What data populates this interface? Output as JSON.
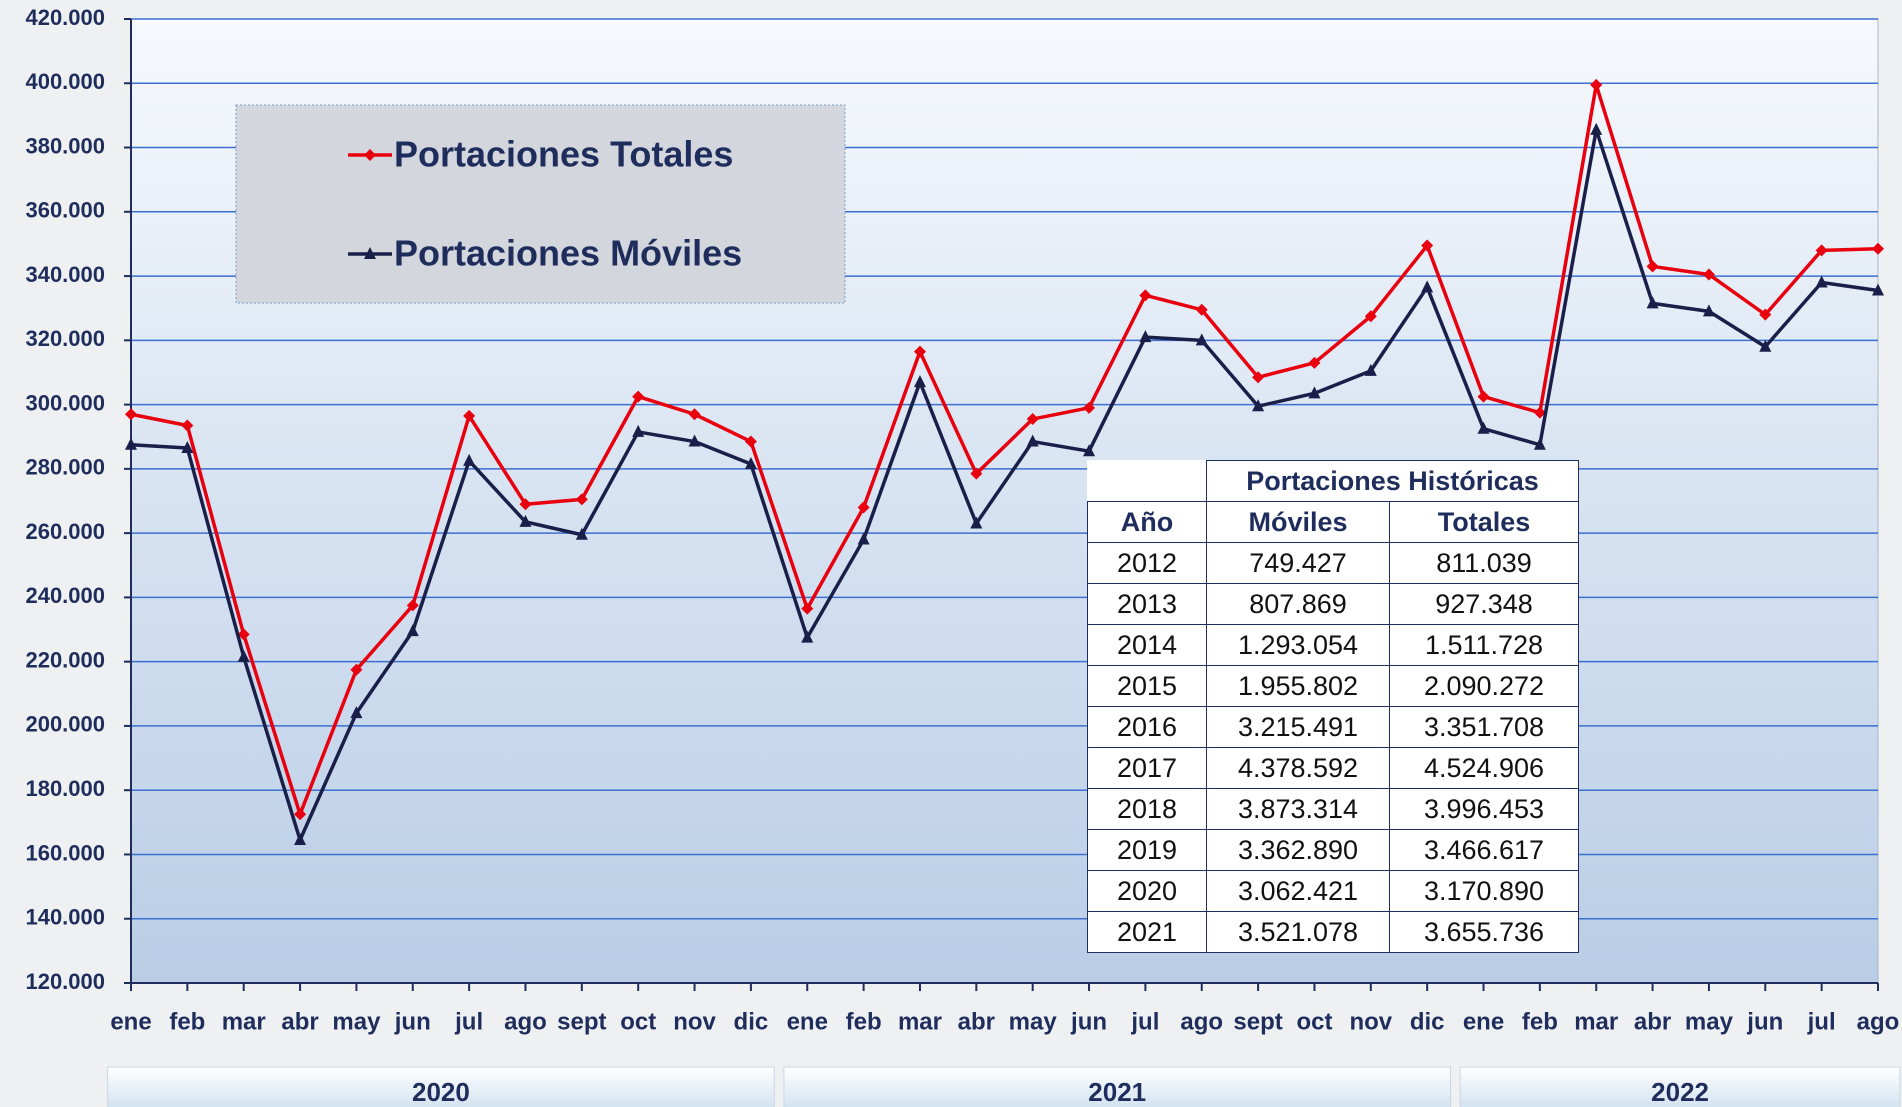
{
  "chart_data": {
    "type": "line",
    "categories": [
      "ene",
      "feb",
      "mar",
      "abr",
      "may",
      "jun",
      "jul",
      "ago",
      "sept",
      "oct",
      "nov",
      "dic",
      "ene",
      "feb",
      "mar",
      "abr",
      "may",
      "jun",
      "jul",
      "ago",
      "sept",
      "oct",
      "nov",
      "dic",
      "ene",
      "feb",
      "mar",
      "abr",
      "may",
      "jun",
      "jul",
      "ago"
    ],
    "groups": [
      "2020",
      "2021",
      "2022"
    ],
    "series": [
      {
        "name": "Portaciones Totales",
        "color": "#e8000e",
        "marker": "diamond",
        "values": [
          297000,
          293500,
          228500,
          172500,
          217500,
          237500,
          296500,
          269000,
          270500,
          302500,
          297000,
          288500,
          236500,
          268000,
          316500,
          278500,
          295500,
          299000,
          334000,
          329500,
          308500,
          313000,
          327500,
          349500,
          302500,
          297500,
          399500,
          343000,
          340500,
          328000,
          348000,
          348500
        ]
      },
      {
        "name": "Portaciones Móviles",
        "color": "#1a1f4a",
        "marker": "triangle",
        "values": [
          287500,
          286500,
          221500,
          164500,
          204000,
          229500,
          282500,
          263500,
          259500,
          291500,
          288500,
          281500,
          227500,
          258000,
          307000,
          263000,
          288500,
          285500,
          321000,
          320000,
          299500,
          303500,
          310500,
          336500,
          292500,
          287500,
          385500,
          331500,
          329000,
          318000,
          338000,
          335500
        ]
      }
    ],
    "ylim": [
      120000,
      420000
    ],
    "yticks": [
      {
        "value": 120000,
        "label": "120.000"
      },
      {
        "value": 140000,
        "label": "140.000"
      },
      {
        "value": 160000,
        "label": "160.000"
      },
      {
        "value": 180000,
        "label": "180.000"
      },
      {
        "value": 200000,
        "label": "200.000"
      },
      {
        "value": 220000,
        "label": "220.000"
      },
      {
        "value": 240000,
        "label": "240.000"
      },
      {
        "value": 260000,
        "label": "260.000"
      },
      {
        "value": 280000,
        "label": "280.000"
      },
      {
        "value": 300000,
        "label": "300.000"
      },
      {
        "value": 320000,
        "label": "320.000"
      },
      {
        "value": 340000,
        "label": "340.000"
      },
      {
        "value": 360000,
        "label": "360.000"
      },
      {
        "value": 380000,
        "label": "380.000"
      },
      {
        "value": 400000,
        "label": "400.000"
      },
      {
        "value": 420000,
        "label": "420.000"
      }
    ],
    "grid": true
  },
  "table": {
    "title": "Portaciones Históricas",
    "header": [
      "Año",
      "Móviles",
      "Totales"
    ],
    "rows": [
      [
        "2012",
        "749.427",
        "811.039"
      ],
      [
        "2013",
        "807.869",
        "927.348"
      ],
      [
        "2014",
        "1.293.054",
        "1.511.728"
      ],
      [
        "2015",
        "1.955.802",
        "2.090.272"
      ],
      [
        "2016",
        "3.215.491",
        "3.351.708"
      ],
      [
        "2017",
        "4.378.592",
        "4.524.906"
      ],
      [
        "2018",
        "3.873.314",
        "3.996.453"
      ],
      [
        "2019",
        "3.362.890",
        "3.466.617"
      ],
      [
        "2020",
        "3.062.421",
        "3.170.890"
      ],
      [
        "2021",
        "3.521.078",
        "3.655.736"
      ]
    ]
  }
}
